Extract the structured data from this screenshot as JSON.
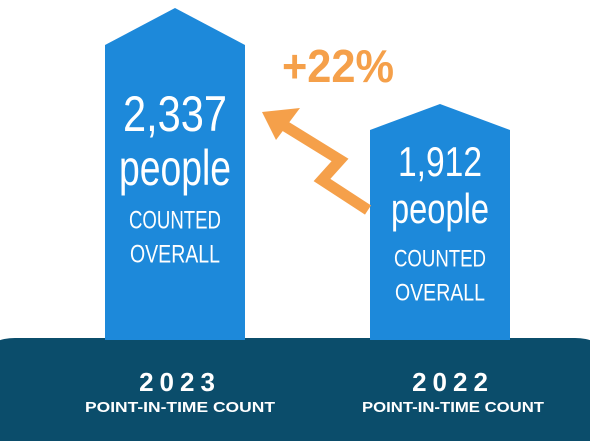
{
  "change": "+22%",
  "bars": [
    {
      "value": "2,337",
      "unit": "people",
      "caption_1": "COUNTED",
      "caption_2": "OVERALL",
      "year": "2023",
      "label": "POINT-IN-TIME COUNT"
    },
    {
      "value": "1,912",
      "unit": "people",
      "caption_1": "COUNTED",
      "caption_2": "OVERALL",
      "year": "2022",
      "label": "POINT-IN-TIME COUNT"
    }
  ]
}
